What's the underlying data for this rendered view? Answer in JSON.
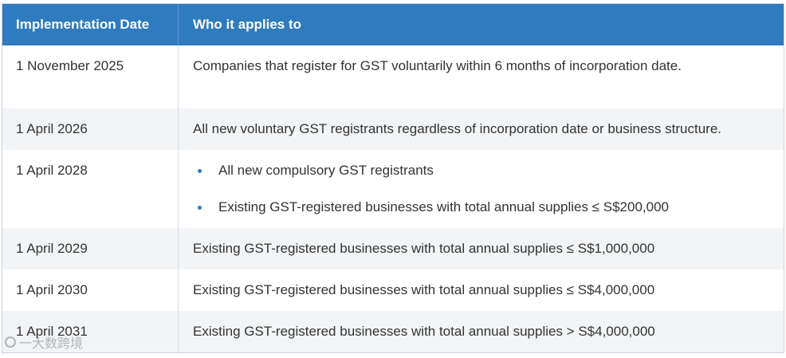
{
  "table": {
    "headers": {
      "date": "Implementation Date",
      "applies": "Who it applies to"
    },
    "rows": [
      {
        "date": "1 November 2025",
        "applies": "Companies that register for GST voluntarily within 6 months of incorporation date."
      },
      {
        "date": "1 April 2026",
        "applies": "All new voluntary GST registrants regardless of incorporation date or business structure."
      },
      {
        "date": "1 April 2028",
        "bullets": [
          "All new compulsory GST registrants",
          "Existing GST-registered businesses with total annual supplies ≤ S$200,000"
        ]
      },
      {
        "date": "1 April 2029",
        "applies": "Existing GST-registered businesses with total annual supplies ≤ S$1,000,000"
      },
      {
        "date": "1 April 2030",
        "applies": "Existing GST-registered businesses with total annual supplies ≤ S$4,000,000"
      },
      {
        "date": "1 April 2031",
        "applies": "Existing GST-registered businesses with total annual supplies > S$4,000,000"
      }
    ]
  },
  "watermark": {
    "text": "一大数跨境"
  }
}
